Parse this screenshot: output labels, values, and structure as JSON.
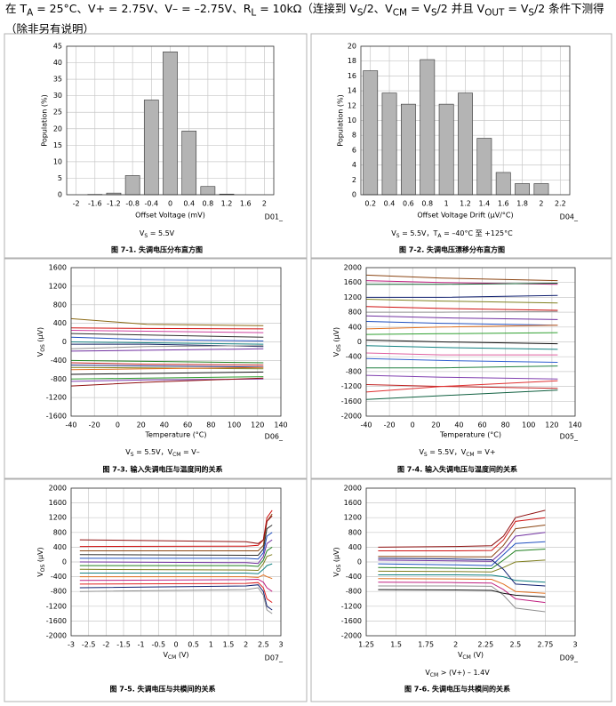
{
  "header": {
    "segments": [
      "在 T",
      "A",
      " = 25°C、V+ = 2.75V、V– = –2.75V、R",
      "L",
      " = 10kΩ（连接到 V",
      "S",
      "/2、V",
      "CM",
      " = V",
      "S",
      "/2 并且 V",
      "OUT",
      " = V",
      "S",
      "/2 条件下测得（除非另有说明）"
    ]
  },
  "chart_data": [
    {
      "type": "bar",
      "title": "图 7-1. 失调电压分布直方图",
      "subtitle": [
        "V",
        "S",
        " = 5.5V"
      ],
      "x_label": "Offset Voltage (mV)",
      "y_label": "Population (%)",
      "annotation": "D01_",
      "categories": [
        "-2",
        "-1.6",
        "-1.2",
        "-0.8",
        "-0.4",
        "0",
        "0.4",
        "0.8",
        "1.2",
        "1.6",
        "2"
      ],
      "values": [
        0,
        0.1,
        0.5,
        5.8,
        28.7,
        43.3,
        19.3,
        2.5,
        0.2,
        0,
        0
      ],
      "color": "#b4b4b4",
      "ylim": [
        0,
        45
      ],
      "yticks": [
        0,
        5,
        10,
        15,
        20,
        25,
        30,
        35,
        40,
        45
      ],
      "grid": true
    },
    {
      "type": "bar",
      "title": "图 7-2. 失调电压漂移分布直方图",
      "subtitle": [
        "V",
        "S",
        " = 5.5V，T",
        "A",
        " = –40°C 至 +125°C"
      ],
      "x_label": "Offset Voltage Drift (µV/°C)",
      "y_label": "Population (%)",
      "annotation": "D04_",
      "categories": [
        "0.2",
        "0.4",
        "0.6",
        "0.8",
        "1",
        "1.2",
        "1.4",
        "1.6",
        "1.8",
        "2",
        "2.2"
      ],
      "values": [
        16.7,
        13.7,
        12.2,
        18.2,
        12.2,
        13.7,
        7.6,
        3.0,
        1.5,
        1.5,
        0
      ],
      "color": "#b4b4b4",
      "ylim": [
        0,
        20
      ],
      "yticks": [
        0,
        2,
        4,
        6,
        8,
        10,
        12,
        14,
        16,
        18,
        20
      ],
      "grid": true
    },
    {
      "type": "line",
      "title": "图 7-3. 输入失调电压与温度间的关系",
      "subtitle": [
        "V",
        "S",
        " = 5.5V，V",
        "CM",
        " = V–"
      ],
      "x_label": "Temperature (°C)",
      "y_label": [
        "V",
        "OS",
        " (μV)"
      ],
      "annotation": "D06_",
      "x": [
        -40,
        25,
        125
      ],
      "xlim": [
        -40,
        140
      ],
      "xticks": [
        -40,
        -20,
        0,
        20,
        40,
        60,
        80,
        100,
        120,
        140
      ],
      "ylim": [
        -1600,
        1600
      ],
      "yticks": [
        -1600,
        -1200,
        -800,
        -400,
        0,
        400,
        800,
        1200,
        1600
      ],
      "grid": true,
      "series": [
        {
          "color": "#8b6914",
          "values": [
            500,
            380,
            350
          ]
        },
        {
          "color": "#d01010",
          "values": [
            300,
            290,
            280
          ]
        },
        {
          "color": "#d040a0",
          "values": [
            250,
            230,
            200
          ]
        },
        {
          "color": "#303030",
          "values": [
            180,
            150,
            100
          ]
        },
        {
          "color": "#2050c0",
          "values": [
            100,
            50,
            20
          ]
        },
        {
          "color": "#108080",
          "values": [
            0,
            -20,
            -50
          ]
        },
        {
          "color": "#102060",
          "values": [
            -50,
            -50,
            -100
          ]
        },
        {
          "color": "#909090",
          "values": [
            -150,
            -100,
            -80
          ]
        },
        {
          "color": "#7030a0",
          "values": [
            -200,
            -180,
            -150
          ]
        },
        {
          "color": "#208020",
          "values": [
            -400,
            -420,
            -450
          ]
        },
        {
          "color": "#c02020",
          "values": [
            -450,
            -480,
            -500
          ]
        },
        {
          "color": "#203080",
          "values": [
            -500,
            -520,
            -540
          ]
        },
        {
          "color": "#808020",
          "values": [
            -550,
            -560,
            -580
          ]
        },
        {
          "color": "#e07020",
          "values": [
            -600,
            -580,
            -550
          ]
        },
        {
          "color": "#101010",
          "values": [
            -700,
            -680,
            -650
          ]
        },
        {
          "color": "#30a030",
          "values": [
            -800,
            -780,
            -750
          ]
        },
        {
          "color": "#8040b0",
          "values": [
            -850,
            -820,
            -800
          ]
        },
        {
          "color": "#901010",
          "values": [
            -950,
            -870,
            -780
          ]
        }
      ]
    },
    {
      "type": "line",
      "title": "图 7-4. 输入失调电压与温度间的关系",
      "subtitle": [
        "V",
        "S",
        " = 5.5V，V",
        "CM",
        " = V+"
      ],
      "x_label": "Temperature (°C)",
      "y_label": [
        "V",
        "OS",
        " (μV)"
      ],
      "annotation": "D05_",
      "x": [
        -40,
        25,
        125
      ],
      "xlim": [
        -40,
        140
      ],
      "xticks": [
        -40,
        -20,
        0,
        20,
        40,
        60,
        80,
        100,
        120,
        140
      ],
      "ylim": [
        -2000,
        2000
      ],
      "yticks": [
        -2000,
        -1600,
        -1200,
        -800,
        -400,
        0,
        400,
        800,
        1200,
        1600,
        2000
      ],
      "grid": true,
      "series": [
        {
          "color": "#8b4513",
          "values": [
            1800,
            1720,
            1650
          ]
        },
        {
          "color": "#c02080",
          "values": [
            1650,
            1600,
            1550
          ]
        },
        {
          "color": "#106030",
          "values": [
            1550,
            1550,
            1580
          ]
        },
        {
          "color": "#102070",
          "values": [
            1200,
            1200,
            1250
          ]
        },
        {
          "color": "#808020",
          "values": [
            1150,
            1100,
            1050
          ]
        },
        {
          "color": "#d01010",
          "values": [
            950,
            900,
            850
          ]
        },
        {
          "color": "#909090",
          "values": [
            800,
            800,
            820
          ]
        },
        {
          "color": "#7030a0",
          "values": [
            700,
            650,
            600
          ]
        },
        {
          "color": "#2050c0",
          "values": [
            550,
            500,
            450
          ]
        },
        {
          "color": "#e07020",
          "values": [
            350,
            400,
            450
          ]
        },
        {
          "color": "#30a030",
          "values": [
            200,
            220,
            250
          ]
        },
        {
          "color": "#101010",
          "values": [
            50,
            0,
            -50
          ]
        },
        {
          "color": "#108080",
          "values": [
            -100,
            -150,
            -200
          ]
        },
        {
          "color": "#e060a0",
          "values": [
            -300,
            -350,
            -350
          ]
        },
        {
          "color": "#3060d0",
          "values": [
            -450,
            -500,
            -550
          ]
        },
        {
          "color": "#208040",
          "values": [
            -700,
            -700,
            -650
          ]
        },
        {
          "color": "#8040b0",
          "values": [
            -900,
            -950,
            -1000
          ]
        },
        {
          "color": "#c02020",
          "values": [
            -1150,
            -1200,
            -1250
          ]
        },
        {
          "color": "#e03030",
          "values": [
            -1350,
            -1200,
            -1050
          ]
        },
        {
          "color": "#106040",
          "values": [
            -1550,
            -1450,
            -1300
          ]
        }
      ]
    },
    {
      "type": "line",
      "title": "图 7-5. 失调电压与共模间的关系",
      "x_label": [
        "V",
        "CM",
        " (V)"
      ],
      "y_label": [
        "V",
        "OS",
        " (μV)"
      ],
      "annotation": "D07_",
      "x": [
        -2.75,
        2.0,
        2.35,
        2.5,
        2.6,
        2.75
      ],
      "xlim": [
        -3,
        3
      ],
      "xticks": [
        -3,
        -2.5,
        -2,
        -1.5,
        -1,
        -0.5,
        0,
        0.5,
        1,
        1.5,
        2,
        2.5,
        3
      ],
      "ylim": [
        -2000,
        2000
      ],
      "yticks": [
        -2000,
        -1600,
        -1200,
        -800,
        -400,
        0,
        400,
        800,
        1200,
        1600,
        2000
      ],
      "grid": true,
      "series": [
        {
          "color": "#d01010",
          "values": [
            420,
            430,
            450,
            600,
            1200,
            1400
          ]
        },
        {
          "color": "#8b4513",
          "values": [
            300,
            300,
            300,
            450,
            1100,
            1300
          ]
        },
        {
          "color": "#303030",
          "values": [
            200,
            180,
            180,
            350,
            900,
            1000
          ]
        },
        {
          "color": "#2050c0",
          "values": [
            100,
            100,
            80,
            250,
            700,
            800
          ]
        },
        {
          "color": "#7030a0",
          "values": [
            0,
            -20,
            -40,
            150,
            500,
            600
          ]
        },
        {
          "color": "#208020",
          "values": [
            -100,
            -100,
            -120,
            50,
            300,
            400
          ]
        },
        {
          "color": "#808020",
          "values": [
            -200,
            -220,
            -230,
            -50,
            150,
            200
          ]
        },
        {
          "color": "#108080",
          "values": [
            -300,
            -300,
            -320,
            -200,
            -100,
            -50
          ]
        },
        {
          "color": "#e07020",
          "values": [
            -400,
            -400,
            -420,
            -350,
            -400,
            -450
          ]
        },
        {
          "color": "#c02080",
          "values": [
            -500,
            -480,
            -470,
            -550,
            -700,
            -800
          ]
        },
        {
          "color": "#e02020",
          "values": [
            -600,
            -580,
            -560,
            -700,
            -1000,
            -1100
          ]
        },
        {
          "color": "#102070",
          "values": [
            -700,
            -650,
            -620,
            -800,
            -1200,
            -1300
          ]
        },
        {
          "color": "#909090",
          "values": [
            -800,
            -750,
            -700,
            -900,
            -1300,
            -1400
          ]
        },
        {
          "color": "#901010",
          "values": [
            600,
            550,
            500,
            600,
            1100,
            1250
          ]
        }
      ]
    },
    {
      "type": "line",
      "title": "图 7-6. 失调电压与共模间的关系",
      "subtitle": [
        "V",
        "CM",
        " > (V+) – 1.4V"
      ],
      "x_label": [
        "V",
        "CM",
        " (V)"
      ],
      "y_label": [
        "V",
        "OS",
        " (μV)"
      ],
      "annotation": "D09_",
      "x": [
        1.35,
        2.0,
        2.3,
        2.4,
        2.5,
        2.75
      ],
      "xlim": [
        1.25,
        3
      ],
      "xticks": [
        1.25,
        1.5,
        1.75,
        2,
        2.25,
        2.5,
        2.75,
        3
      ],
      "ylim": [
        -2000,
        2000
      ],
      "yticks": [
        -2000,
        -1600,
        -1200,
        -800,
        -400,
        0,
        400,
        800,
        1200,
        1600,
        2000
      ],
      "grid": true,
      "series": [
        {
          "color": "#901010",
          "values": [
            400,
            420,
            440,
            700,
            1200,
            1400
          ]
        },
        {
          "color": "#d01010",
          "values": [
            300,
            300,
            310,
            600,
            1100,
            1200
          ]
        },
        {
          "color": "#8b4513",
          "values": [
            150,
            140,
            140,
            450,
            900,
            1000
          ]
        },
        {
          "color": "#7030a0",
          "values": [
            50,
            30,
            20,
            300,
            700,
            800
          ]
        },
        {
          "color": "#2050c0",
          "values": [
            -50,
            -80,
            -100,
            200,
            500,
            550
          ]
        },
        {
          "color": "#208020",
          "values": [
            -150,
            -170,
            -180,
            50,
            300,
            350
          ]
        },
        {
          "color": "#808020",
          "values": [
            -250,
            -260,
            -270,
            -150,
            0,
            50
          ]
        },
        {
          "color": "#108080",
          "values": [
            -350,
            -350,
            -360,
            -400,
            -500,
            -550
          ]
        },
        {
          "color": "#e07020",
          "values": [
            -450,
            -460,
            -470,
            -600,
            -800,
            -850
          ]
        },
        {
          "color": "#c02080",
          "values": [
            -550,
            -560,
            -570,
            -750,
            -1000,
            -1100
          ]
        },
        {
          "color": "#909090",
          "values": [
            -650,
            -650,
            -660,
            -900,
            -1250,
            -1350
          ]
        },
        {
          "color": "#101010",
          "values": [
            -750,
            -760,
            -770,
            -850,
            -900,
            -950
          ]
        },
        {
          "color": "#102070",
          "values": [
            100,
            80,
            60,
            -200,
            -600,
            -650
          ]
        }
      ]
    }
  ]
}
